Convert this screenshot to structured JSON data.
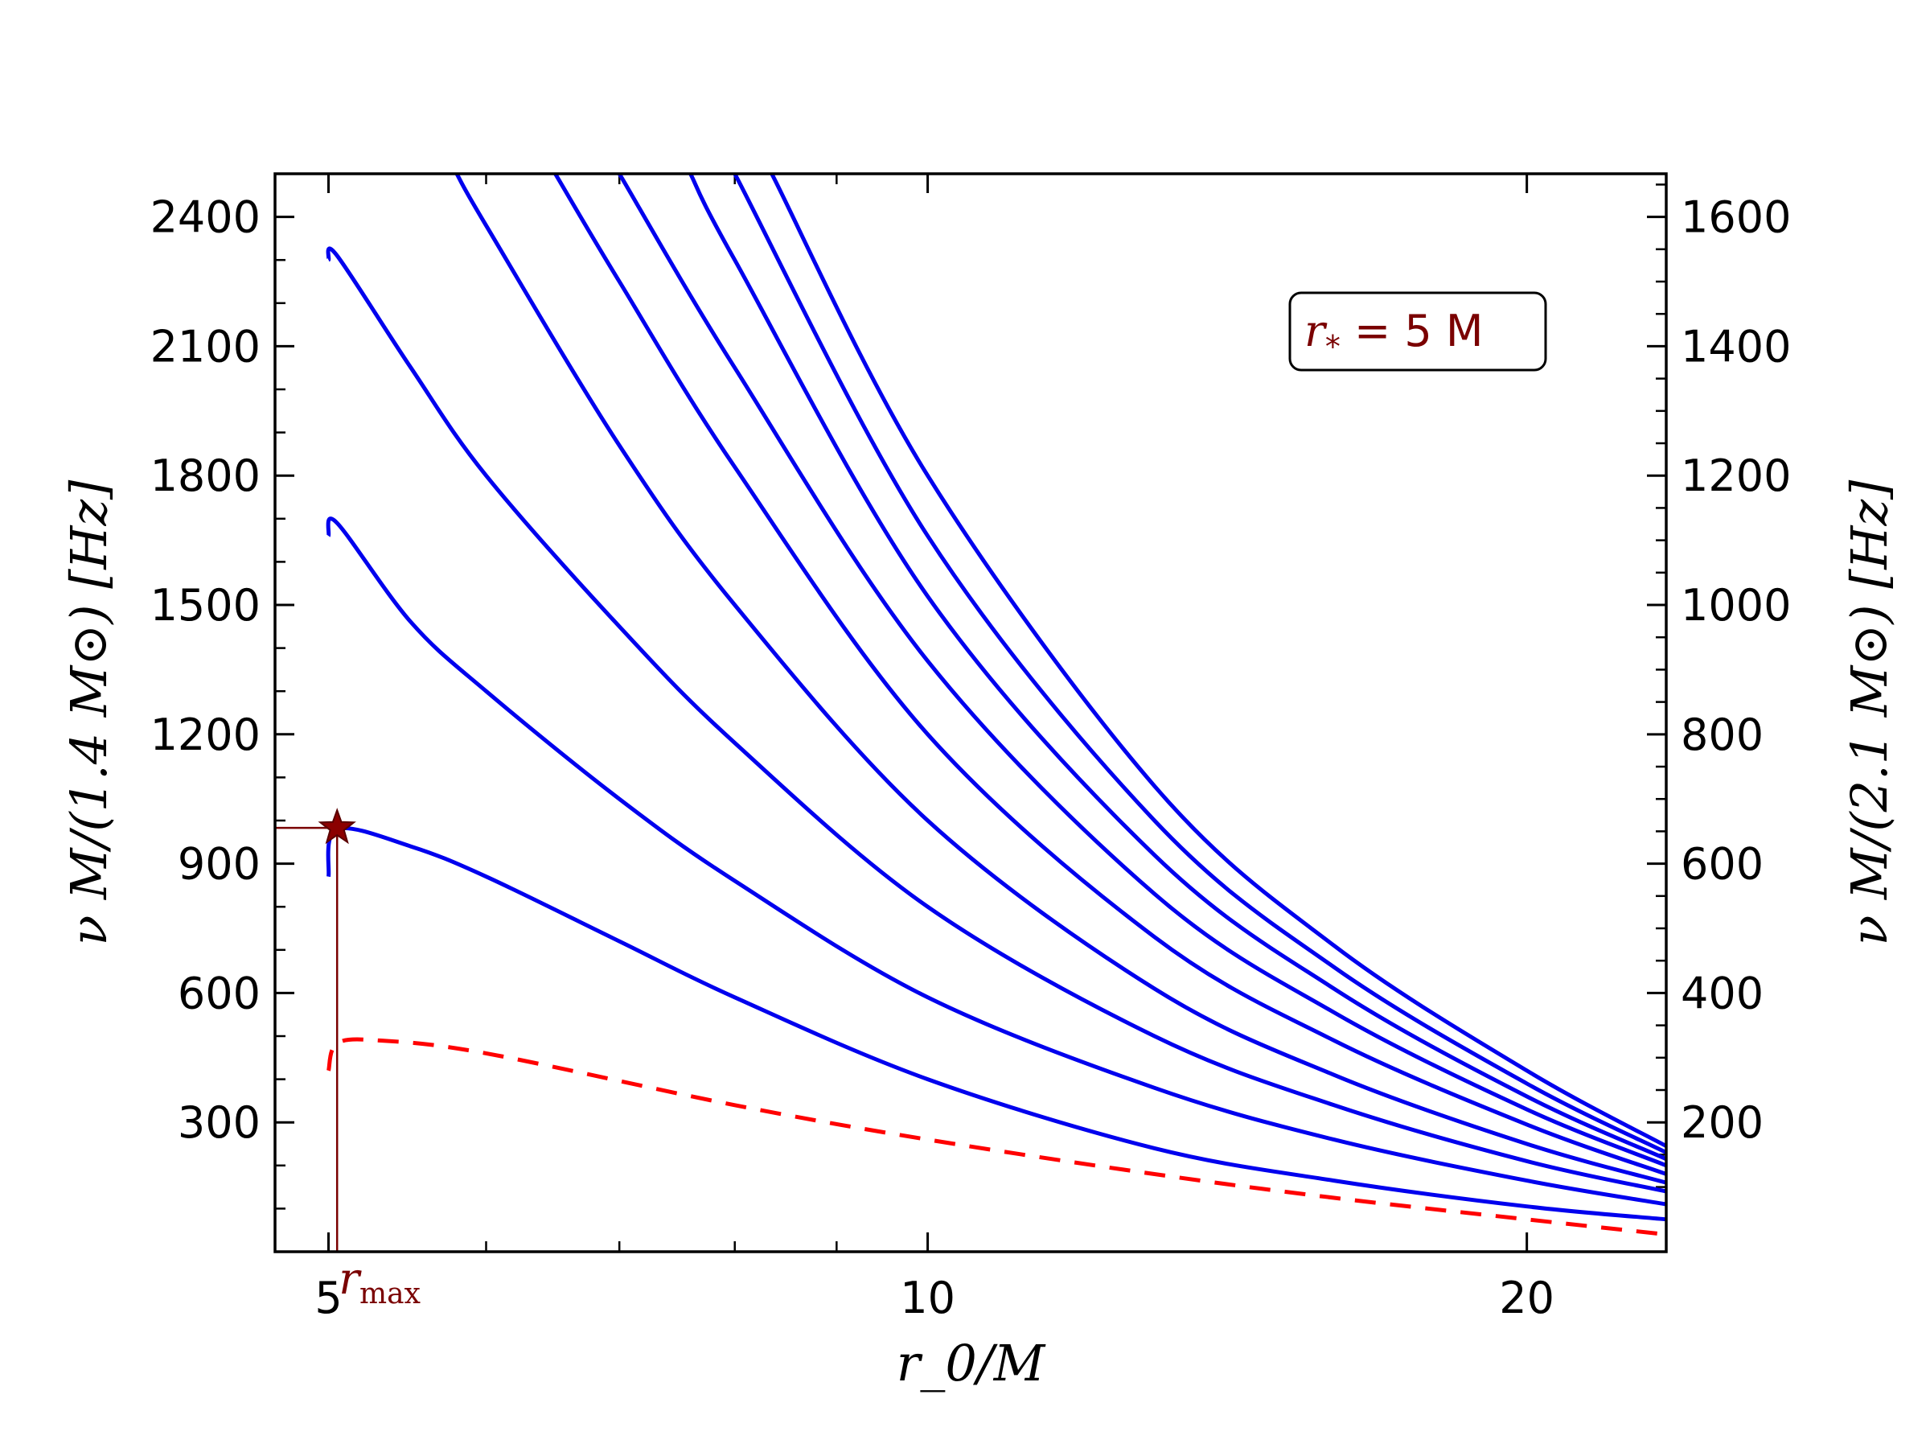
{
  "chart_data": {
    "type": "line",
    "xlabel": "r_0/M",
    "ylabel_left": "ν M/(1.4 M⊙) [Hz]",
    "ylabel_right": "ν M/(2.1 M⊙) [Hz]",
    "xscale": "log",
    "xlim": [
      4.7,
      23.5
    ],
    "ylim": [
      0,
      2500
    ],
    "ylim_right": [
      0,
      1666.7
    ],
    "xticks": [
      5,
      10,
      20
    ],
    "xtick_labels": [
      "5",
      "10",
      "20"
    ],
    "yticks_left": [
      300,
      600,
      900,
      1200,
      1500,
      1800,
      2100,
      2400
    ],
    "yticks_left_labels": [
      "300",
      "600",
      "900",
      "1200",
      "1500",
      "1800",
      "2100",
      "2400"
    ],
    "yticks_right": [
      200,
      400,
      600,
      800,
      1000,
      1200,
      1400,
      1600
    ],
    "yticks_right_labels": [
      "200",
      "400",
      "600",
      "800",
      "1000",
      "1200",
      "1400",
      "1600"
    ],
    "annotation": {
      "prefix": "r",
      "subscript": "*",
      "suffix": " = 5 M",
      "position": "top-right"
    },
    "marker": {
      "label_prefix": "r",
      "label_subscript": "max",
      "x": 5.05,
      "y": 983
    },
    "series": [
      {
        "style": "dashed",
        "color": "#ff0000",
        "x": [
          5.0,
          5.05,
          5.3,
          6.0,
          8.0,
          10.0,
          13.0,
          16.0,
          20.0,
          23.5
        ],
        "y": [
          420,
          483,
          490,
          460,
          340,
          260,
          180,
          125,
          75,
          40
        ]
      },
      {
        "style": "solid",
        "color": "#0000ee",
        "x": [
          5.0,
          5.05,
          5.5,
          6.0,
          7.0,
          8.0,
          10.0,
          13.0,
          16.0,
          20.0,
          23.5
        ],
        "y": [
          870,
          980,
          940,
          870,
          720,
          590,
          400,
          240,
          165,
          105,
          75
        ]
      },
      {
        "style": "solid",
        "color": "#0000ee",
        "x": [
          5.0,
          5.05,
          5.5,
          6.0,
          7.0,
          8.0,
          10.0,
          13.0,
          16.0,
          20.0,
          23.5
        ],
        "y": [
          1660,
          1690,
          1460,
          1300,
          1050,
          860,
          590,
          380,
          260,
          165,
          110
        ]
      },
      {
        "style": "solid",
        "color": "#0000ee",
        "x": [
          5.0,
          5.05,
          5.5,
          6.0,
          7.0,
          8.0,
          10.0,
          13.0,
          16.0,
          20.0,
          23.5
        ],
        "y": [
          2300,
          2310,
          2050,
          1800,
          1450,
          1180,
          800,
          500,
          340,
          210,
          140
        ]
      },
      {
        "style": "solid",
        "color": "#0000ee",
        "x": [
          5.8,
          6.0,
          7.0,
          8.0,
          10.0,
          13.0,
          16.0,
          20.0,
          23.5
        ],
        "y": [
          2500,
          2380,
          1870,
          1500,
          1000,
          610,
          410,
          250,
          160
        ]
      },
      {
        "style": "solid",
        "color": "#0000ee",
        "x": [
          6.5,
          7.0,
          8.0,
          10.0,
          13.0,
          16.0,
          20.0,
          23.5
        ],
        "y": [
          2500,
          2250,
          1820,
          1200,
          730,
          490,
          295,
          180
        ]
      },
      {
        "style": "solid",
        "color": "#0000ee",
        "x": [
          7.0,
          8.0,
          10.0,
          13.0,
          16.0,
          20.0,
          23.5
        ],
        "y": [
          2500,
          2050,
          1370,
          830,
          555,
          330,
          200
        ]
      },
      {
        "style": "solid",
        "color": "#0000ee",
        "x": [
          7.6,
          8.0,
          10.0,
          13.0,
          16.0,
          20.0,
          23.5
        ],
        "y": [
          2500,
          2300,
          1520,
          920,
          610,
          360,
          215
        ]
      },
      {
        "style": "solid",
        "color": "#0000ee",
        "x": [
          8.0,
          10.0,
          13.0,
          16.0,
          20.0,
          23.5
        ],
        "y": [
          2500,
          1660,
          1000,
          660,
          390,
          230
        ]
      },
      {
        "style": "solid",
        "color": "#0000ee",
        "x": [
          8.35,
          10.0,
          13.0,
          16.0,
          20.0,
          23.5
        ],
        "y": [
          2500,
          1800,
          1080,
          710,
          420,
          245
        ]
      }
    ]
  }
}
